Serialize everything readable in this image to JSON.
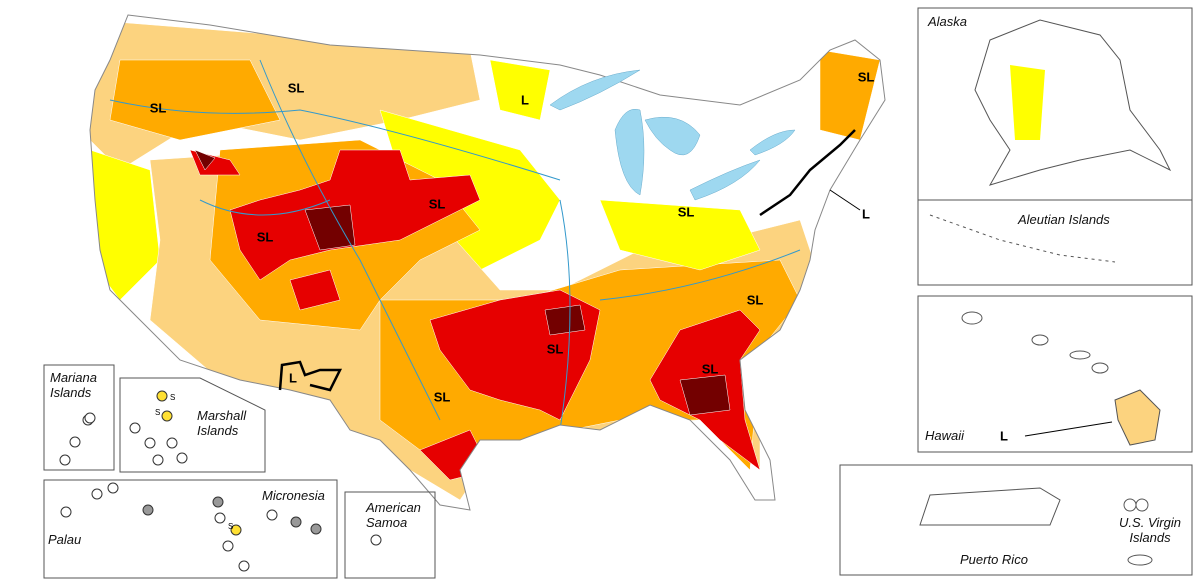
{
  "regions": {
    "alaska": "Alaska",
    "aleutian_islands": "Aleutian Islands",
    "hawaii": "Hawaii",
    "puerto_rico": "Puerto Rico",
    "virgin_islands": "U.S. Virgin Islands",
    "mariana_islands": "Mariana Islands",
    "marshall_islands": "Marshall Islands",
    "micronesia": "Micronesia",
    "palau": "Palau",
    "american_samoa": "American Samoa"
  },
  "impact_labels": [
    "SL",
    "SL",
    "L",
    "SL",
    "SL",
    "SL",
    "SL",
    "L",
    "SL",
    "SL",
    "SL",
    "L",
    "SL",
    "L"
  ],
  "pacific_labels": [
    "S",
    "S",
    "S"
  ]
}
